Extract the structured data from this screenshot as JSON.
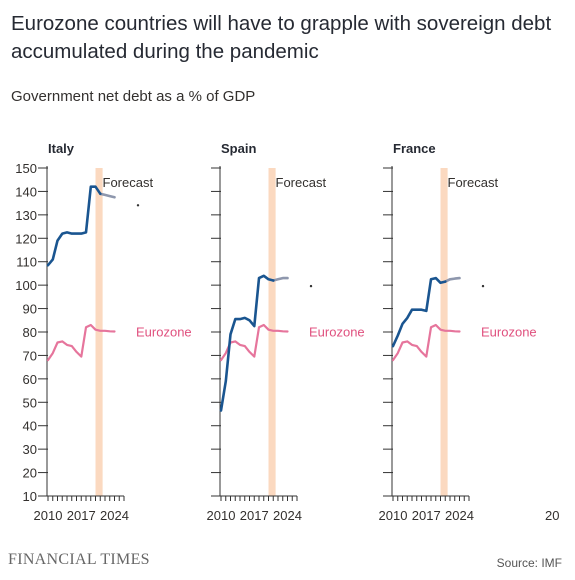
{
  "header": {
    "title": "Eurozone countries will have to grapple with sovereign debt accumulated during the pandemic",
    "subtitle": "Government net debt as a % of GDP"
  },
  "footer": {
    "brand": "FINANCIAL TIMES",
    "source": "Source: IMF"
  },
  "colors": {
    "country_line": "#1a5590",
    "forecast_line": "#8e97ad",
    "eurozone_line": "#e6759c",
    "eurozone_label": "#e0517f",
    "forecast_band": "#fbd9c0",
    "axis": "#333333"
  },
  "chart_data": {
    "type": "line",
    "ylim": [
      10,
      150
    ],
    "yticks": [
      10,
      20,
      30,
      40,
      50,
      60,
      70,
      80,
      90,
      100,
      110,
      120,
      130,
      140,
      150
    ],
    "xlim": [
      2010,
      2026
    ],
    "xticks": [
      "2010",
      "2017",
      "2024"
    ],
    "forecast_band": [
      2020,
      2021.5
    ],
    "forecast_label": "Forecast",
    "eurozone_label": "Eurozone",
    "trailing_label": "20",
    "eurozone": {
      "x": [
        2010,
        2011,
        2012,
        2013,
        2014,
        2015,
        2016,
        2017,
        2018,
        2019,
        2020,
        2021,
        2022,
        2023,
        2024
      ],
      "values": [
        68,
        71,
        75.5,
        76,
        74.5,
        74,
        71.5,
        69.5,
        82,
        83,
        81,
        80.5,
        80.5,
        80.3,
        80.2
      ]
    },
    "panels": [
      {
        "name": "Italy",
        "series": {
          "x": [
            2010,
            2011,
            2012,
            2013,
            2014,
            2015,
            2016,
            2017,
            2018,
            2019,
            2020,
            2021,
            2022,
            2023,
            2024
          ],
          "values": [
            108.5,
            111,
            119,
            122,
            122.5,
            122,
            122,
            122,
            122.5,
            142,
            142,
            139,
            138.5,
            138,
            137.5
          ]
        }
      },
      {
        "name": "Spain",
        "series": {
          "x": [
            2010,
            2011,
            2012,
            2013,
            2014,
            2015,
            2016,
            2017,
            2018,
            2019,
            2020,
            2021,
            2022,
            2023,
            2024
          ],
          "values": [
            46.5,
            59,
            79,
            85.5,
            85.5,
            86,
            85,
            82.5,
            103,
            104,
            102.5,
            102,
            102.5,
            103,
            103
          ]
        }
      },
      {
        "name": "France",
        "series": {
          "x": [
            2010,
            2011,
            2012,
            2013,
            2014,
            2015,
            2016,
            2017,
            2018,
            2019,
            2020,
            2021,
            2022,
            2023,
            2024
          ],
          "values": [
            74,
            78.5,
            83.5,
            86,
            89.5,
            89.5,
            89.5,
            89,
            102.5,
            103,
            101,
            101.5,
            102.5,
            102.8,
            103
          ]
        }
      }
    ],
    "forecast_from": 2021
  }
}
